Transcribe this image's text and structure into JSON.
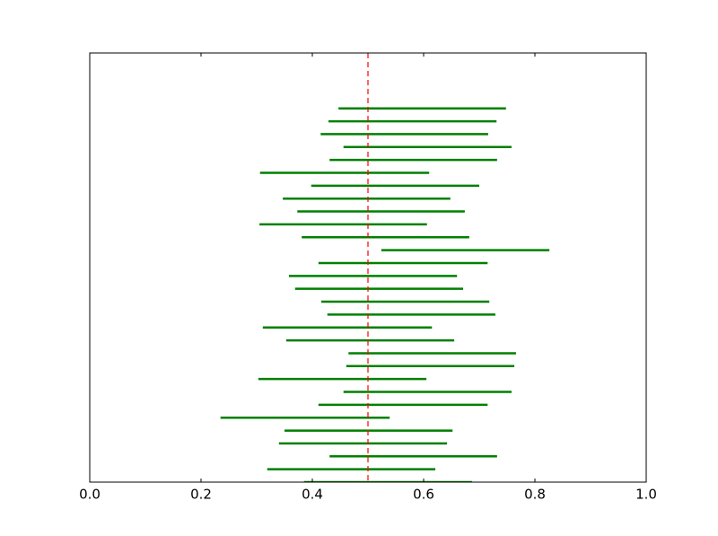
{
  "chart_data": {
    "type": "interval",
    "color": "#008000",
    "y": [
      0,
      1,
      2,
      3,
      4,
      5,
      6,
      7,
      8,
      9,
      10,
      11,
      12,
      13,
      14,
      15,
      16,
      17,
      18,
      19,
      20,
      21,
      22,
      23,
      24,
      25,
      26,
      27,
      28,
      29
    ],
    "low": [
      0.385,
      0.319,
      0.431,
      0.34,
      0.35,
      0.235,
      0.411,
      0.456,
      0.303,
      0.461,
      0.465,
      0.353,
      0.311,
      0.427,
      0.416,
      0.369,
      0.358,
      0.411,
      0.524,
      0.381,
      0.305,
      0.373,
      0.347,
      0.398,
      0.306,
      0.431,
      0.456,
      0.415,
      0.429,
      0.447
    ],
    "high": [
      0.687,
      0.621,
      0.732,
      0.642,
      0.652,
      0.539,
      0.715,
      0.758,
      0.605,
      0.763,
      0.766,
      0.655,
      0.615,
      0.729,
      0.718,
      0.671,
      0.66,
      0.715,
      0.826,
      0.682,
      0.606,
      0.674,
      0.648,
      0.7,
      0.61,
      0.732,
      0.758,
      0.716,
      0.731,
      0.748
    ],
    "reference_line": 0.5,
    "reference_color": "#ff0000",
    "xlim": [
      0,
      1
    ],
    "ylim": [
      0,
      33.3
    ],
    "xticks": [
      {
        "value": 0,
        "label": "0.0"
      },
      0.2,
      0.4,
      0.6,
      0.8,
      {
        "value": 1,
        "label": "1.0"
      }
    ]
  }
}
